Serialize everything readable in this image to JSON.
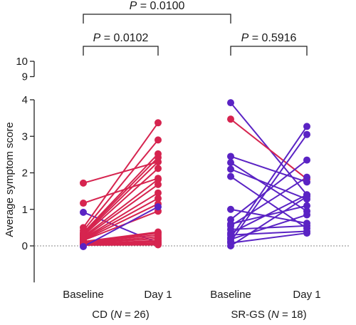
{
  "chart_data": {
    "type": "scatter",
    "title": "",
    "ylabel": "Average symptom score",
    "ylim": [
      -1,
      10
    ],
    "y_break": [
      4.5,
      8.5
    ],
    "yticks": [
      0,
      1,
      2,
      3,
      4,
      9,
      10
    ],
    "reference_line_y": 0,
    "colors": {
      "red": "#d6244f",
      "purple": "#5a23c4"
    },
    "groups": [
      {
        "name": "CD",
        "n_label_parts": [
          "CD (",
          "N",
          " = 26)"
        ],
        "timepoints": [
          "Baseline",
          "Day 1"
        ],
        "pairs": [
          {
            "baseline": 1.72,
            "day1": 2.3,
            "color": "red"
          },
          {
            "baseline": 1.17,
            "day1": 1.85,
            "color": "red"
          },
          {
            "baseline": 0.92,
            "day1": 0.08,
            "color": "purple"
          },
          {
            "baseline": 0.5,
            "day1": 3.37,
            "color": "red"
          },
          {
            "baseline": 0.42,
            "day1": 2.9,
            "color": "red"
          },
          {
            "baseline": 0.36,
            "day1": 2.52,
            "color": "red"
          },
          {
            "baseline": 0.33,
            "day1": 2.42,
            "color": "red"
          },
          {
            "baseline": 0.3,
            "day1": 2.3,
            "color": "red"
          },
          {
            "baseline": 0.28,
            "day1": 2.12,
            "color": "red"
          },
          {
            "baseline": 0.25,
            "day1": 1.82,
            "color": "red"
          },
          {
            "baseline": 0.22,
            "day1": 1.68,
            "color": "red"
          },
          {
            "baseline": 0.2,
            "day1": 1.45,
            "color": "red"
          },
          {
            "baseline": 0.18,
            "day1": 1.3,
            "color": "red"
          },
          {
            "baseline": 0.16,
            "day1": 1.15,
            "color": "red"
          },
          {
            "baseline": 0.15,
            "day1": 0.95,
            "color": "red"
          },
          {
            "baseline": 0.12,
            "day1": 0.38,
            "color": "red"
          },
          {
            "baseline": 0.1,
            "day1": 0.35,
            "color": "red"
          },
          {
            "baseline": 0.1,
            "day1": 0.3,
            "color": "red"
          },
          {
            "baseline": 0.08,
            "day1": 0.25,
            "color": "red"
          },
          {
            "baseline": 0.07,
            "day1": 0.2,
            "color": "red"
          },
          {
            "baseline": 0.05,
            "day1": 0.15,
            "color": "red"
          },
          {
            "baseline": 0.05,
            "day1": 0.12,
            "color": "red"
          },
          {
            "baseline": 0.04,
            "day1": 0.08,
            "color": "red"
          },
          {
            "baseline": 0.03,
            "day1": 0.05,
            "color": "red"
          },
          {
            "baseline": 0.02,
            "day1": 0.03,
            "color": "red"
          },
          {
            "baseline": -0.02,
            "day1": 1.07,
            "color": "purple"
          }
        ]
      },
      {
        "name": "SR-GS",
        "n_label_parts": [
          "SR-GS (",
          "N",
          " = 18)"
        ],
        "timepoints": [
          "Baseline",
          "Day 1"
        ],
        "pairs": [
          {
            "baseline": 3.92,
            "day1": 1.4,
            "color": "purple"
          },
          {
            "baseline": 3.47,
            "day1": 1.83,
            "color": "red"
          },
          {
            "baseline": 2.45,
            "day1": 1.75,
            "color": "purple"
          },
          {
            "baseline": 2.28,
            "day1": 0.95,
            "color": "purple"
          },
          {
            "baseline": 2.1,
            "day1": 1.28,
            "color": "purple"
          },
          {
            "baseline": 1.9,
            "day1": 0.48,
            "color": "purple"
          },
          {
            "baseline": 0.72,
            "day1": 2.35,
            "color": "purple"
          },
          {
            "baseline": 0.55,
            "day1": 1.88,
            "color": "purple"
          },
          {
            "baseline": 0.35,
            "day1": 1.4,
            "color": "purple"
          },
          {
            "baseline": 0.22,
            "day1": 3.27,
            "color": "purple"
          },
          {
            "baseline": 0.12,
            "day1": 3.05,
            "color": "purple"
          },
          {
            "baseline": 0.0,
            "day1": 1.35,
            "color": "purple"
          },
          {
            "baseline": 0.6,
            "day1": 1.1,
            "color": "purple"
          },
          {
            "baseline": 0.45,
            "day1": 0.55,
            "color": "purple"
          },
          {
            "baseline": 0.3,
            "day1": 0.4,
            "color": "purple"
          },
          {
            "baseline": 0.18,
            "day1": 0.85,
            "color": "purple"
          },
          {
            "baseline": 0.08,
            "day1": 0.35,
            "color": "purple"
          },
          {
            "baseline": 1.0,
            "day1": 0.62,
            "color": "purple"
          }
        ]
      }
    ],
    "comparisons": [
      {
        "from": [
          0,
          0
        ],
        "to": [
          0,
          1
        ],
        "label_parts": [
          "P",
          " = 0.0102"
        ]
      },
      {
        "from": [
          1,
          0
        ],
        "to": [
          1,
          1
        ],
        "label_parts": [
          "P",
          " = 0.5916"
        ]
      },
      {
        "from": [
          0,
          0
        ],
        "to": [
          1,
          0
        ],
        "label_parts": [
          "P",
          " = 0.0100"
        ]
      }
    ]
  }
}
